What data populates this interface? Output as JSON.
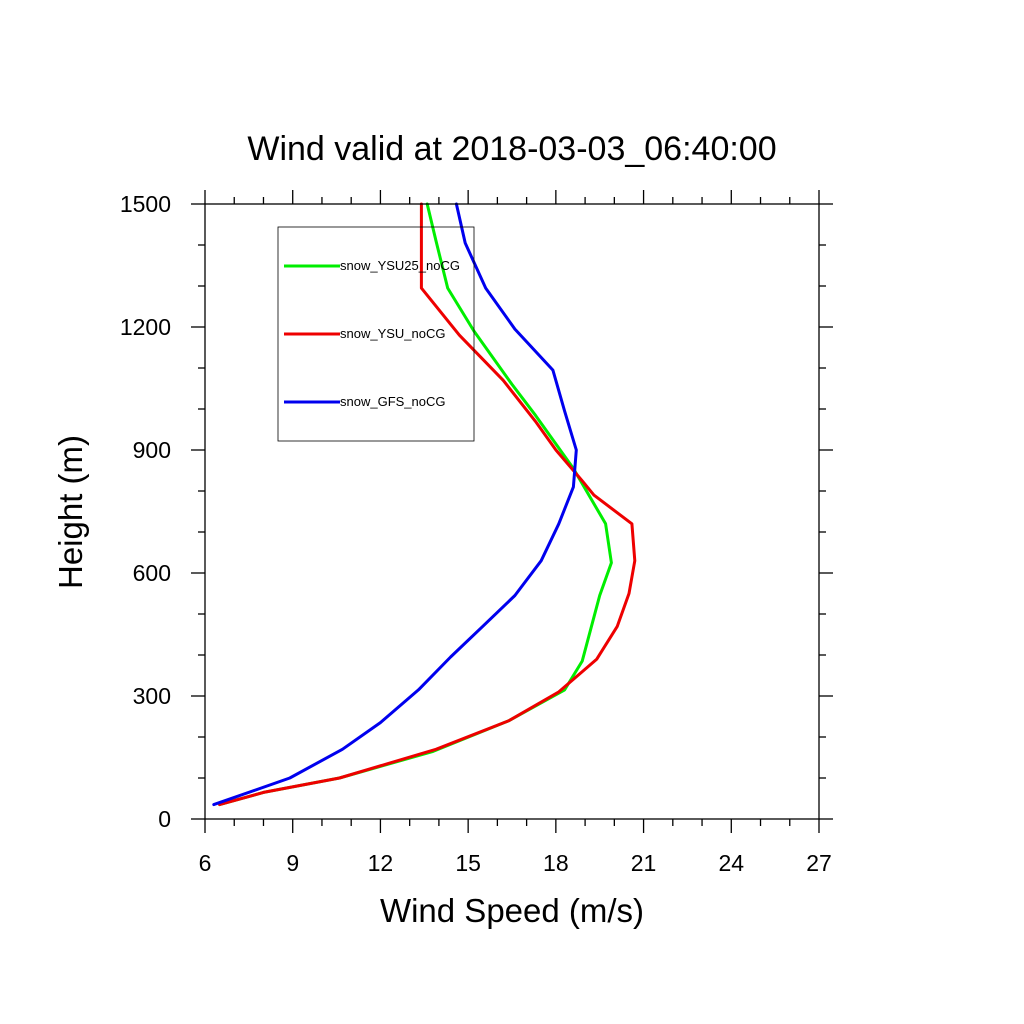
{
  "chart_data": {
    "type": "line",
    "title": "Wind valid at 2018-03-03_06:40:00",
    "xlabel": "Wind Speed (m/s)",
    "ylabel": "Height (m)",
    "xlim": [
      6,
      27
    ],
    "ylim": [
      0,
      1500
    ],
    "x_ticks": [
      6,
      9,
      12,
      15,
      18,
      21,
      24,
      27
    ],
    "y_ticks": [
      0,
      300,
      600,
      900,
      1200,
      1500
    ],
    "x_minor_step": 1,
    "y_minor_step": 100,
    "grid": false,
    "legend": {
      "placement": "top-left",
      "boxed": true
    },
    "series": [
      {
        "name": "snow_YSU25_noCG",
        "color": "#00ee00",
        "points": [
          [
            6.5,
            35
          ],
          [
            8.0,
            65
          ],
          [
            10.6,
            100
          ],
          [
            13.8,
            165
          ],
          [
            16.4,
            240
          ],
          [
            18.3,
            315
          ],
          [
            18.9,
            385
          ],
          [
            19.5,
            545
          ],
          [
            19.9,
            625
          ],
          [
            19.7,
            720
          ],
          [
            18.6,
            855
          ],
          [
            17.3,
            985
          ],
          [
            16.5,
            1060
          ],
          [
            15.2,
            1190
          ],
          [
            14.3,
            1295
          ],
          [
            13.9,
            1410
          ],
          [
            13.6,
            1500
          ]
        ]
      },
      {
        "name": "snow_YSU_noCG",
        "color": "#ee0000",
        "points": [
          [
            6.5,
            35
          ],
          [
            8.0,
            65
          ],
          [
            10.6,
            100
          ],
          [
            13.9,
            170
          ],
          [
            16.4,
            240
          ],
          [
            18.1,
            310
          ],
          [
            19.4,
            390
          ],
          [
            20.1,
            470
          ],
          [
            20.5,
            550
          ],
          [
            20.7,
            630
          ],
          [
            20.6,
            720
          ],
          [
            19.3,
            790
          ],
          [
            18.9,
            825
          ],
          [
            18.0,
            900
          ],
          [
            17.3,
            970
          ],
          [
            16.2,
            1070
          ],
          [
            14.7,
            1180
          ],
          [
            13.4,
            1295
          ],
          [
            13.4,
            1500
          ]
        ]
      },
      {
        "name": "snow_GFS_noCG",
        "color": "#0000ee",
        "points": [
          [
            6.3,
            35
          ],
          [
            8.9,
            100
          ],
          [
            10.7,
            170
          ],
          [
            12.0,
            235
          ],
          [
            13.3,
            315
          ],
          [
            14.4,
            395
          ],
          [
            15.5,
            470
          ],
          [
            16.6,
            545
          ],
          [
            17.5,
            630
          ],
          [
            18.1,
            720
          ],
          [
            18.6,
            810
          ],
          [
            18.7,
            900
          ],
          [
            18.3,
            995
          ],
          [
            17.9,
            1095
          ],
          [
            16.6,
            1195
          ],
          [
            15.6,
            1295
          ],
          [
            14.9,
            1405
          ],
          [
            14.6,
            1500
          ]
        ]
      }
    ]
  }
}
